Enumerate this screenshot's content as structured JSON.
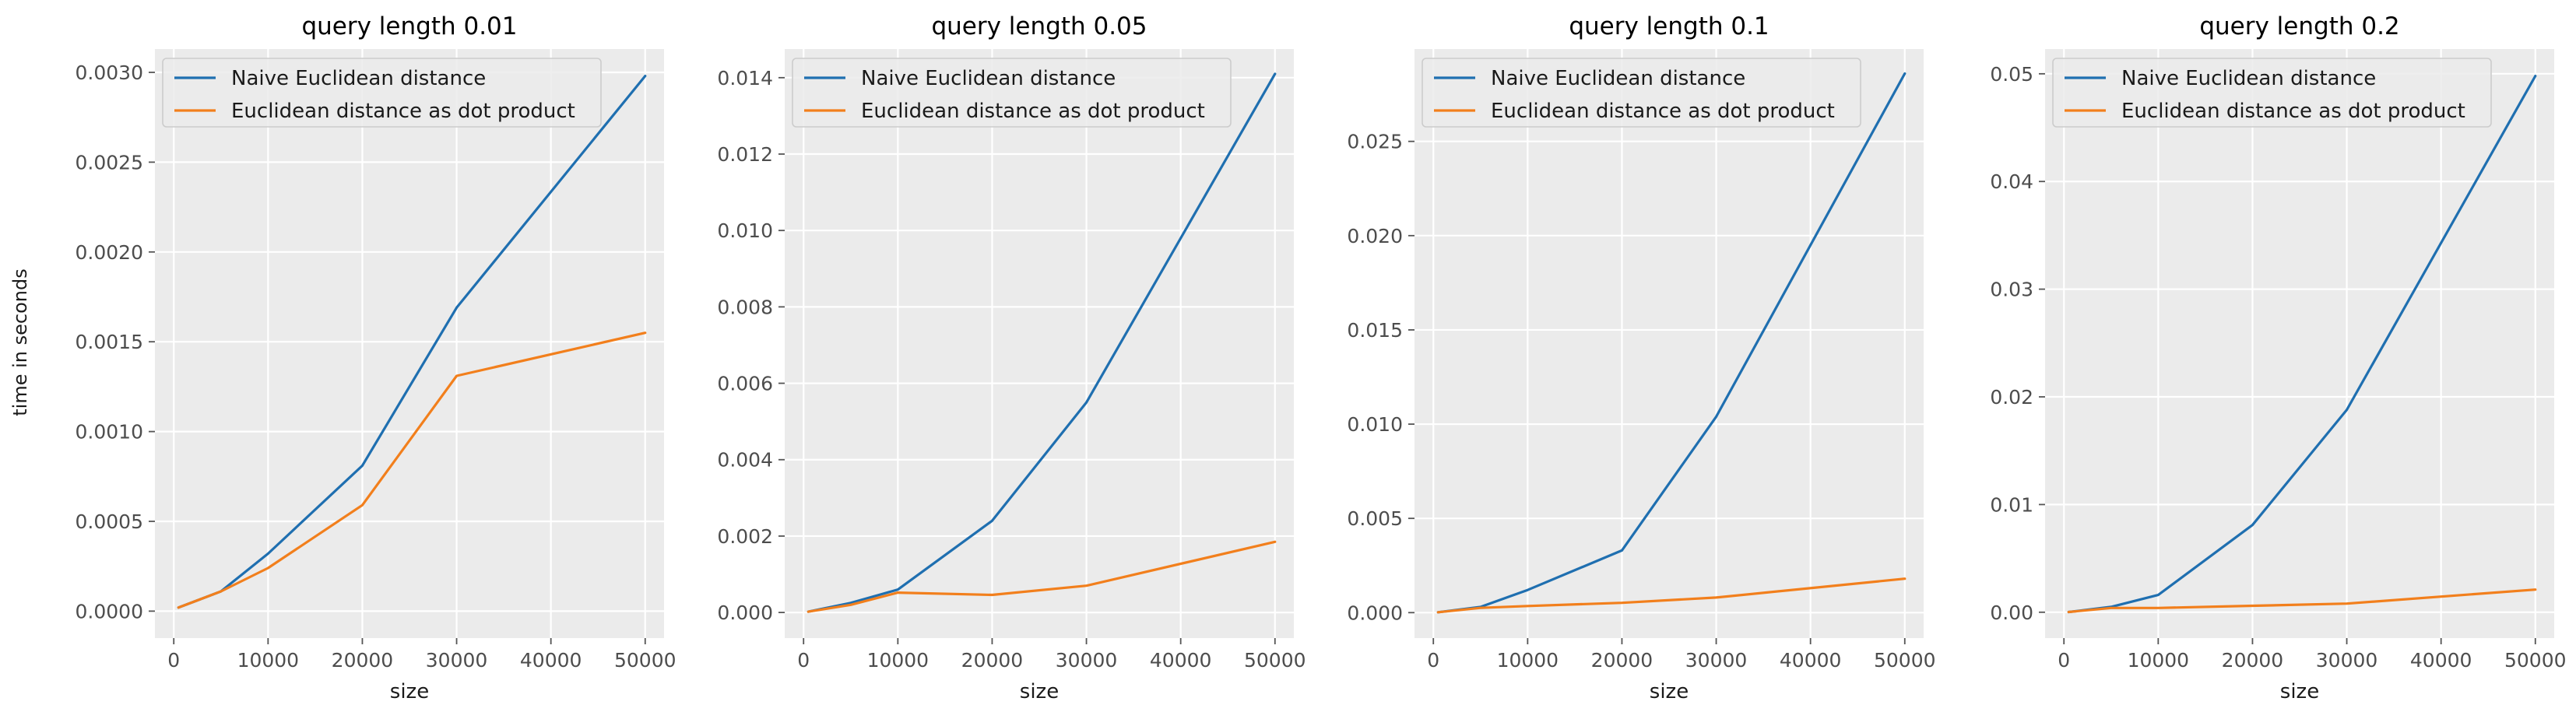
{
  "figure": {
    "ylabel": "time in seconds",
    "colors": {
      "background": "#ebebeb",
      "grid": "#ffffff",
      "naive": "#1f6fb0",
      "dot": "#f27f1c"
    }
  },
  "chart_data": [
    {
      "type": "line",
      "title": "query length 0.01",
      "xlabel": "size",
      "ylabel": "time in seconds",
      "xlim": [
        -2000,
        52000
      ],
      "ylim": [
        -0.00015,
        0.00313
      ],
      "xticks": [
        0,
        10000,
        20000,
        30000,
        40000,
        50000
      ],
      "yticks": [
        0.0,
        0.0005,
        0.001,
        0.0015,
        0.002,
        0.0025,
        0.003
      ],
      "ytick_labels": [
        "0.0000",
        "0.0005",
        "0.0010",
        "0.0015",
        "0.0020",
        "0.0025",
        "0.0030"
      ],
      "grid": true,
      "legend": "upper-left",
      "x": [
        500,
        5000,
        10000,
        20000,
        30000,
        50000
      ],
      "series": [
        {
          "name": "Naive Euclidean distance",
          "color": "#1f6fb0",
          "values": [
            2e-05,
            0.00011,
            0.00032,
            0.00081,
            0.00169,
            0.00298
          ]
        },
        {
          "name": "Euclidean distance as dot product",
          "color": "#f27f1c",
          "values": [
            2e-05,
            0.00011,
            0.00024,
            0.00059,
            0.00131,
            0.00155
          ]
        }
      ]
    },
    {
      "type": "line",
      "title": "query length 0.05",
      "xlabel": "size",
      "ylabel": "",
      "xlim": [
        -2000,
        52000
      ],
      "ylim": [
        -0.00067,
        0.01475
      ],
      "xticks": [
        0,
        10000,
        20000,
        30000,
        40000,
        50000
      ],
      "yticks": [
        0.0,
        0.002,
        0.004,
        0.006,
        0.008,
        0.01,
        0.012,
        0.014
      ],
      "ytick_labels": [
        "0.000",
        "0.002",
        "0.004",
        "0.006",
        "0.008",
        "0.010",
        "0.012",
        "0.014"
      ],
      "grid": true,
      "legend": "upper-left",
      "x": [
        500,
        5000,
        10000,
        20000,
        30000,
        50000
      ],
      "series": [
        {
          "name": "Naive Euclidean distance",
          "color": "#1f6fb0",
          "values": [
            2e-05,
            0.00025,
            0.0006,
            0.0024,
            0.0055,
            0.0141
          ]
        },
        {
          "name": "Euclidean distance as dot product",
          "color": "#f27f1c",
          "values": [
            2e-05,
            0.0002,
            0.00052,
            0.00046,
            0.0007,
            0.00185
          ]
        }
      ]
    },
    {
      "type": "line",
      "title": "query length 0.1",
      "xlabel": "size",
      "ylabel": "",
      "xlim": [
        -2000,
        52000
      ],
      "ylim": [
        -0.00135,
        0.0299
      ],
      "xticks": [
        0,
        10000,
        20000,
        30000,
        40000,
        50000
      ],
      "yticks": [
        0.0,
        0.005,
        0.01,
        0.015,
        0.02,
        0.025
      ],
      "ytick_labels": [
        "0.000",
        "0.005",
        "0.010",
        "0.015",
        "0.020",
        "0.025"
      ],
      "grid": true,
      "legend": "upper-left",
      "x": [
        500,
        5000,
        10000,
        20000,
        30000,
        50000
      ],
      "series": [
        {
          "name": "Naive Euclidean distance",
          "color": "#1f6fb0",
          "values": [
            2e-05,
            0.0003,
            0.0012,
            0.0033,
            0.0104,
            0.0286
          ]
        },
        {
          "name": "Euclidean distance as dot product",
          "color": "#f27f1c",
          "values": [
            2e-05,
            0.00025,
            0.00035,
            0.00052,
            0.0008,
            0.0018
          ]
        }
      ]
    },
    {
      "type": "line",
      "title": "query length 0.2",
      "xlabel": "size",
      "ylabel": "",
      "xlim": [
        -2000,
        52000
      ],
      "ylim": [
        -0.0024,
        0.0523
      ],
      "xticks": [
        0,
        10000,
        20000,
        30000,
        40000,
        50000
      ],
      "yticks": [
        0.0,
        0.01,
        0.02,
        0.03,
        0.04,
        0.05
      ],
      "ytick_labels": [
        "0.00",
        "0.01",
        "0.02",
        "0.03",
        "0.04",
        "0.05"
      ],
      "grid": true,
      "legend": "upper-left",
      "x": [
        500,
        5000,
        10000,
        20000,
        30000,
        50000
      ],
      "series": [
        {
          "name": "Naive Euclidean distance",
          "color": "#1f6fb0",
          "values": [
            2e-05,
            0.0005,
            0.0016,
            0.0081,
            0.0188,
            0.0498
          ]
        },
        {
          "name": "Euclidean distance as dot product",
          "color": "#f27f1c",
          "values": [
            2e-05,
            0.0004,
            0.0004,
            0.0006,
            0.0008,
            0.0021
          ]
        }
      ]
    }
  ]
}
